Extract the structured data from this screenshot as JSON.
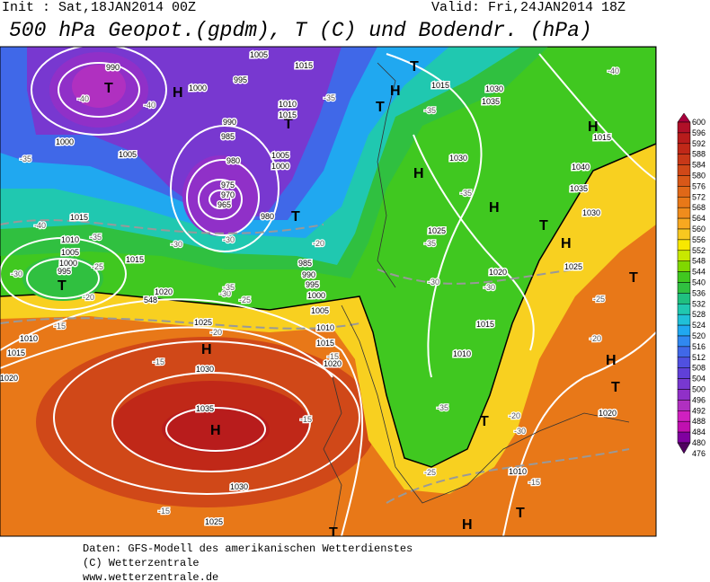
{
  "header": {
    "init": "Init : Sat,18JAN2014 00Z",
    "valid": "Valid: Fri,24JAN2014 18Z",
    "title": "500 hPa Geopot.(gpdm), T (C) und Bodendr. (hPa)"
  },
  "colorbar": {
    "labels": [
      "600",
      "596",
      "592",
      "588",
      "584",
      "580",
      "576",
      "572",
      "568",
      "564",
      "560",
      "556",
      "552",
      "548",
      "544",
      "540",
      "536",
      "532",
      "528",
      "524",
      "520",
      "516",
      "512",
      "508",
      "504",
      "500",
      "496",
      "492",
      "488",
      "484",
      "480",
      "476"
    ],
    "colors": [
      "#a8003c",
      "#b01028",
      "#b81c1c",
      "#c02818",
      "#c83818",
      "#d04818",
      "#d85818",
      "#e06818",
      "#e87818",
      "#f08c1c",
      "#f8a820",
      "#f8c820",
      "#f8e800",
      "#c8e800",
      "#80d800",
      "#40c820",
      "#30c040",
      "#20c080",
      "#20c8b0",
      "#20c0d8",
      "#20a8f0",
      "#3088f0",
      "#4068e8",
      "#5050e0",
      "#6040d8",
      "#7838d0",
      "#9030c8",
      "#b030c0",
      "#d020c0",
      "#c010b0",
      "#8000a0",
      "#500060"
    ]
  },
  "map": {
    "pressure_systems": [
      "T",
      "H",
      "T",
      "H",
      "T",
      "T",
      "H",
      "H",
      "T",
      "H",
      "T",
      "H",
      "T",
      "H",
      "H",
      "T",
      "T",
      "H",
      "T",
      "H",
      "T",
      "T"
    ],
    "isobar_labels": [
      "990",
      "995",
      "1000",
      "1005",
      "1015",
      "1010",
      "1015",
      "990",
      "985",
      "980",
      "975",
      "970",
      "965",
      "980",
      "1000",
      "1005",
      "1015",
      "1010",
      "1005",
      "1000",
      "995",
      "1015",
      "1020",
      "1025",
      "1030",
      "1035",
      "1030",
      "1025",
      "1015",
      "1010",
      "1020",
      "1030",
      "1035",
      "1015",
      "1030",
      "1025",
      "1020",
      "1015",
      "1010",
      "1040",
      "1035",
      "1030",
      "1025",
      "1020",
      "1010",
      "985",
      "990",
      "995",
      "1000",
      "1005",
      "1010",
      "1015",
      "1020",
      "1005",
      "1000",
      "1015"
    ],
    "temperature_labels": [
      "-40",
      "-40",
      "-35",
      "-40",
      "-35",
      "-30",
      "-25",
      "-20",
      "-35",
      "-35",
      "-35",
      "-35",
      "-30",
      "-30",
      "-25",
      "-20",
      "-15",
      "-20",
      "-15",
      "-15",
      "-15",
      "-15",
      "-20",
      "-30",
      "-25",
      "-35",
      "-40",
      "-30",
      "-25",
      "-30",
      "-35",
      "-20",
      "-30",
      "-15"
    ],
    "contour_label": "548"
  },
  "footer": [
    "Daten: GFS-Modell des amerikanischen Wetterdienstes",
    "(C) Wetterzentrale",
    "www.wetterzentrale.de"
  ]
}
